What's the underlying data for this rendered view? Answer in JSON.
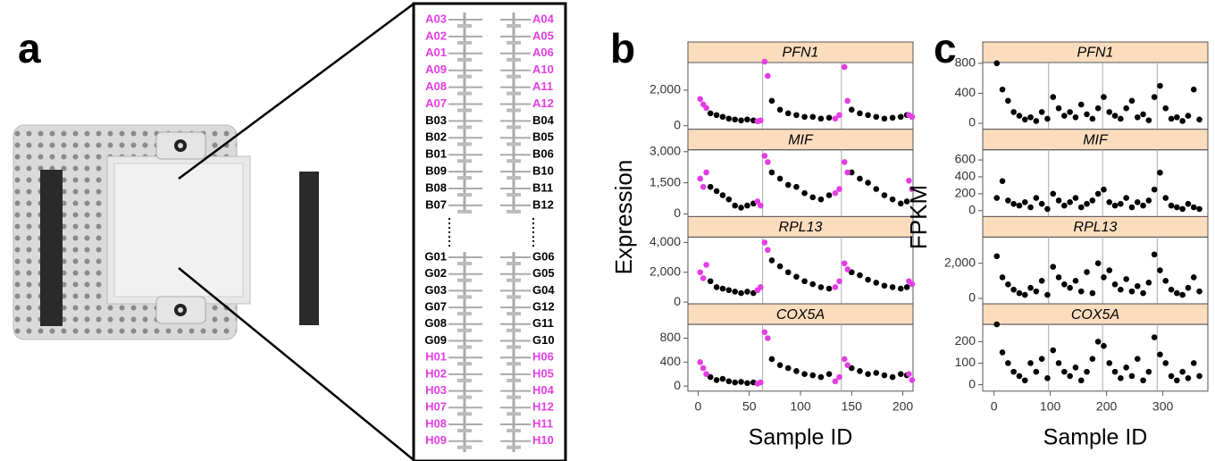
{
  "panel_labels": [
    "a",
    "b",
    "c"
  ],
  "chip": {
    "left": [
      {
        "text": "A03",
        "color": "#e43de4"
      },
      {
        "text": "A02",
        "color": "#e43de4"
      },
      {
        "text": "A01",
        "color": "#e43de4"
      },
      {
        "text": "A09",
        "color": "#e43de4"
      },
      {
        "text": "A08",
        "color": "#e43de4"
      },
      {
        "text": "A07",
        "color": "#e43de4"
      },
      {
        "text": "B03",
        "color": "#000000"
      },
      {
        "text": "B02",
        "color": "#000000"
      },
      {
        "text": "B01",
        "color": "#000000"
      },
      {
        "text": "B09",
        "color": "#000000"
      },
      {
        "text": "B08",
        "color": "#000000"
      },
      {
        "text": "B07",
        "color": "#000000"
      },
      {
        "text": "G01",
        "color": "#000000"
      },
      {
        "text": "G02",
        "color": "#000000"
      },
      {
        "text": "G03",
        "color": "#000000"
      },
      {
        "text": "G07",
        "color": "#000000"
      },
      {
        "text": "G08",
        "color": "#000000"
      },
      {
        "text": "G09",
        "color": "#000000"
      },
      {
        "text": "H01",
        "color": "#e43de4"
      },
      {
        "text": "H02",
        "color": "#e43de4"
      },
      {
        "text": "H03",
        "color": "#e43de4"
      },
      {
        "text": "H07",
        "color": "#e43de4"
      },
      {
        "text": "H08",
        "color": "#e43de4"
      },
      {
        "text": "H09",
        "color": "#e43de4"
      }
    ],
    "right": [
      {
        "text": "A04",
        "color": "#e43de4"
      },
      {
        "text": "A05",
        "color": "#e43de4"
      },
      {
        "text": "A06",
        "color": "#e43de4"
      },
      {
        "text": "A10",
        "color": "#e43de4"
      },
      {
        "text": "A11",
        "color": "#e43de4"
      },
      {
        "text": "A12",
        "color": "#e43de4"
      },
      {
        "text": "B04",
        "color": "#000000"
      },
      {
        "text": "B05",
        "color": "#000000"
      },
      {
        "text": "B06",
        "color": "#000000"
      },
      {
        "text": "B10",
        "color": "#000000"
      },
      {
        "text": "B11",
        "color": "#000000"
      },
      {
        "text": "B12",
        "color": "#000000"
      },
      {
        "text": "G06",
        "color": "#000000"
      },
      {
        "text": "G05",
        "color": "#000000"
      },
      {
        "text": "G04",
        "color": "#000000"
      },
      {
        "text": "G12",
        "color": "#000000"
      },
      {
        "text": "G11",
        "color": "#000000"
      },
      {
        "text": "G10",
        "color": "#000000"
      },
      {
        "text": "H06",
        "color": "#e43de4"
      },
      {
        "text": "H05",
        "color": "#e43de4"
      },
      {
        "text": "H04",
        "color": "#e43de4"
      },
      {
        "text": "H12",
        "color": "#e43de4"
      },
      {
        "text": "H11",
        "color": "#e43de4"
      },
      {
        "text": "H10",
        "color": "#e43de4"
      }
    ]
  },
  "chart_data": [
    {
      "type": "scatter",
      "xlabel": "Sample ID",
      "ylabel": "Expression",
      "xlim": [
        -10,
        210
      ],
      "xticks": [
        0,
        50,
        100,
        150,
        200
      ],
      "vlines": [
        63,
        140
      ],
      "groups": [
        {
          "color": "#000000",
          "x": [
            12,
            18,
            24,
            30,
            36,
            42,
            48,
            54,
            72,
            80,
            88,
            96,
            104,
            112,
            120,
            128,
            150,
            158,
            166,
            174,
            182,
            190,
            198,
            204
          ]
        },
        {
          "color": "#e43de4",
          "x": [
            2,
            5,
            8,
            58,
            61,
            65,
            68,
            134,
            138,
            143,
            146,
            206,
            209
          ]
        }
      ],
      "facets": [
        {
          "title": "PFN1",
          "ylim": [
            -200,
            3550
          ],
          "yticks": [
            0,
            {
              "value": 2000,
              "label": "2,000"
            }
          ],
          "values": [
            [
              700,
              600,
              500,
              400,
              350,
              300,
              350,
              300,
              1400,
              900,
              700,
              600,
              500,
              500,
              400,
              450,
              900,
              700,
              600,
              500,
              400,
              450,
              500,
              600
            ],
            [
              1500,
              1200,
              1000,
              250,
              300,
              3600,
              2800,
              400,
              600,
              3300,
              1400,
              600,
              500
            ]
          ]
        },
        {
          "title": "MIF",
          "ylim": [
            -130,
            3090
          ],
          "yticks": [
            0,
            {
              "value": 1500,
              "label": "1,500"
            },
            {
              "value": 3000,
              "label": "3,000"
            }
          ],
          "values": [
            [
              1300,
              1100,
              900,
              700,
              400,
              300,
              400,
              500,
              2000,
              1700,
              1400,
              1300,
              1000,
              800,
              700,
              900,
              2000,
              1700,
              1500,
              1200,
              900,
              700,
              500,
              600
            ],
            [
              1700,
              1300,
              2000,
              600,
              400,
              2800,
              2500,
              1000,
              1200,
              2500,
              2000,
              1600,
              1200
            ]
          ]
        },
        {
          "title": "RPL13",
          "ylim": [
            -120,
            4360
          ],
          "yticks": [
            0,
            {
              "value": 2000,
              "label": "2,000"
            },
            {
              "value": 4000,
              "label": "4,000"
            }
          ],
          "values": [
            [
              1400,
              1000,
              900,
              800,
              700,
              600,
              700,
              600,
              2800,
              2400,
              2000,
              1700,
              1400,
              1200,
              1000,
              900,
              2000,
              1800,
              1500,
              1300,
              1100,
              1000,
              900,
              1000
            ],
            [
              2000,
              1600,
              2500,
              800,
              1000,
              4000,
              3500,
              1000,
              1400,
              2600,
              2200,
              1400,
              1200
            ]
          ]
        },
        {
          "title": "COX5A",
          "ylim": [
            -85,
            1030
          ],
          "yticks": [
            0,
            400,
            800
          ],
          "values": [
            [
              150,
              100,
              120,
              80,
              60,
              70,
              50,
              60,
              450,
              350,
              300,
              250,
              200,
              180,
              150,
              200,
              300,
              250,
              200,
              220,
              180,
              150,
              200,
              180
            ],
            [
              400,
              300,
              200,
              40,
              60,
              900,
              800,
              80,
              150,
              450,
              350,
              200,
              100
            ]
          ]
        }
      ]
    },
    {
      "type": "scatter",
      "xlabel": "Sample ID",
      "ylabel": "FPKM",
      "xlim": [
        -20,
        380
      ],
      "xticks": [
        0,
        100,
        200,
        300
      ],
      "vlines": [
        97,
        193,
        290
      ],
      "groups": [
        {
          "color": "#000000",
          "x": [
            5,
            15,
            25,
            35,
            45,
            55,
            65,
            75,
            85,
            95,
            105,
            115,
            125,
            135,
            145,
            155,
            165,
            175,
            185,
            195,
            205,
            215,
            225,
            235,
            245,
            255,
            265,
            275,
            285,
            295,
            305,
            315,
            325,
            335,
            345,
            355,
            365
          ]
        }
      ],
      "facets": [
        {
          "title": "PFN1",
          "ylim": [
            -80,
            810
          ],
          "yticks": [
            0,
            400,
            800
          ],
          "values": [
            [
              800,
              450,
              300,
              150,
              100,
              50,
              80,
              30,
              150,
              60,
              350,
              200,
              100,
              150,
              80,
              250,
              120,
              60,
              200,
              350,
              150,
              100,
              60,
              200,
              300,
              80,
              120,
              40,
              350,
              500,
              200,
              60,
              80,
              30,
              100,
              450,
              50
            ]
          ]
        },
        {
          "title": "MIF",
          "ylim": [
            -70,
            720
          ],
          "yticks": [
            0,
            200,
            400,
            600
          ],
          "values": [
            [
              150,
              350,
              120,
              80,
              60,
              100,
              40,
              150,
              80,
              20,
              200,
              120,
              60,
              100,
              150,
              40,
              80,
              120,
              200,
              250,
              100,
              60,
              80,
              150,
              40,
              100,
              60,
              120,
              250,
              450,
              150,
              60,
              40,
              20,
              80,
              40,
              20
            ]
          ]
        },
        {
          "title": "RPL13",
          "ylim": [
            -310,
            3490
          ],
          "yticks": [
            0,
            {
              "value": 2000,
              "label": "2,000"
            }
          ],
          "values": [
            [
              2400,
              1200,
              800,
              500,
              300,
              200,
              600,
              400,
              1000,
              200,
              1800,
              1200,
              800,
              600,
              1000,
              400,
              1500,
              300,
              2000,
              1200,
              1600,
              800,
              500,
              1100,
              400,
              700,
              300,
              900,
              2500,
              1600,
              1000,
              500,
              300,
              200,
              600,
              1200,
              400
            ]
          ]
        },
        {
          "title": "COX5A",
          "ylim": [
            -30,
            280
          ],
          "yticks": [
            0,
            100,
            200
          ],
          "values": [
            [
              280,
              150,
              100,
              60,
              40,
              20,
              100,
              60,
              120,
              30,
              160,
              100,
              60,
              40,
              80,
              20,
              60,
              120,
              200,
              180,
              100,
              60,
              30,
              80,
              40,
              120,
              20,
              60,
              220,
              140,
              100,
              40,
              20,
              60,
              30,
              100,
              40
            ]
          ]
        }
      ]
    }
  ]
}
